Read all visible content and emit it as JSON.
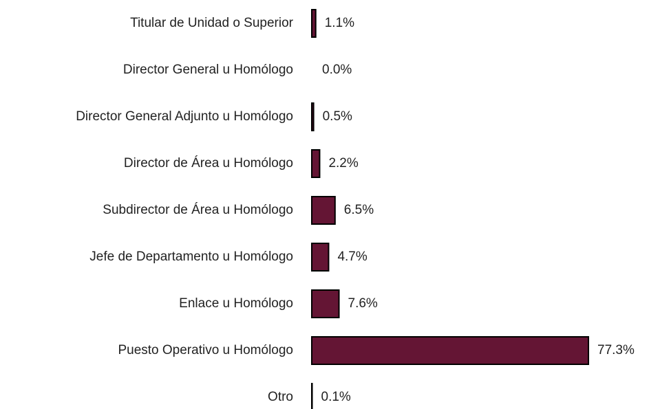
{
  "chart_data": {
    "type": "bar",
    "orientation": "horizontal",
    "categories": [
      "Titular de Unidad o Superior",
      "Director General u Homólogo",
      "Director General Adjunto u Homólogo",
      "Director de Área u Homólogo",
      "Subdirector de Área u Homólogo",
      "Jefe de Departamento u Homólogo",
      "Enlace u Homólogo",
      "Puesto Operativo u Homólogo",
      "Otro"
    ],
    "values": [
      1.1,
      0.0,
      0.5,
      2.2,
      6.5,
      4.7,
      7.6,
      77.3,
      0.1
    ],
    "value_labels": [
      "1.1%",
      "0.0%",
      "0.5%",
      "2.2%",
      "6.5%",
      "4.7%",
      "7.6%",
      "77.3%",
      "0.1%"
    ],
    "color": "#641534"
  }
}
